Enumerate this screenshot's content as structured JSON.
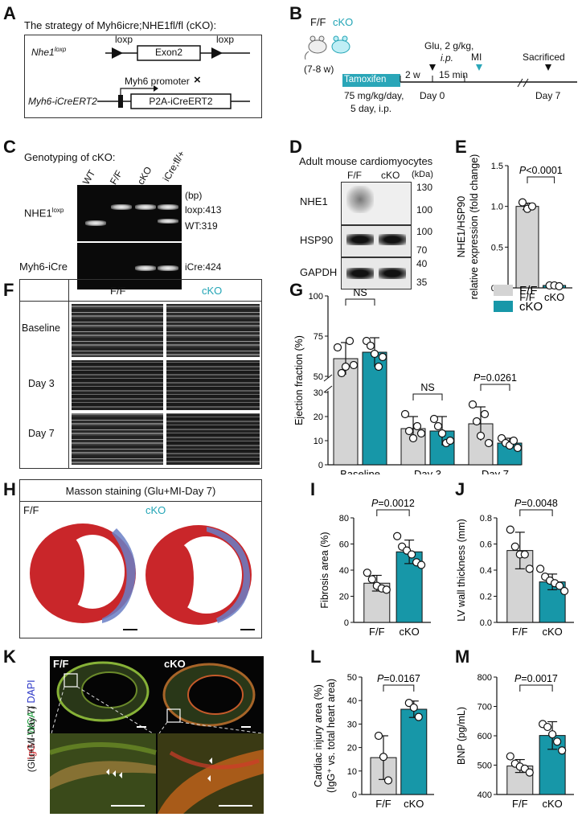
{
  "colors": {
    "ff": "#d4d4d4",
    "cko": "#1797a8",
    "cko_text": "#23a5b6",
    "tamoxifen": "#2aa6b8",
    "tissue_red": "#c9262a",
    "tissue_blue": "#6a7fc6"
  },
  "panelA": {
    "label": "A",
    "title": "The strategy of Myh6icre;NHE1fl/fl (cKO):",
    "nhe1": "Nhe1",
    "nhe1_sup": "loxp",
    "loxp_left": "loxp",
    "loxp_right": "loxp",
    "exon": "Exon2",
    "promoter": "Myh6 promoter",
    "promoter_mark": "×",
    "myh6": "Myh6-iCreERT2",
    "cassette": "P2A-iCreERT2"
  },
  "panelB": {
    "label": "B",
    "ff": "F/F",
    "cko": "cKO",
    "age": "(7-8 w)",
    "tamoxifen": "Tamoxifen",
    "dose1": "75 mg/kg/day,",
    "dose2": "5 day, i.p.",
    "two_w": "2 w",
    "glu": "Glu, 2 g/kg,",
    "glu_ip": "i.p.",
    "fifteen": "15 min",
    "mi": "MI",
    "sacrificed": "Sacrificed",
    "day0": "Day 0",
    "day7": "Day 7",
    "break": "//"
  },
  "panelC": {
    "label": "C",
    "title": "Genotyping of cKO:",
    "lanes": [
      "WT",
      "F/F",
      "cKO",
      "iCre;fl/+"
    ],
    "bp": "(bp)",
    "row1": "NHE1",
    "row1_sup": "loxp",
    "row2": "Myh6-iCre",
    "band1": "loxp:413",
    "band2": "WT:319",
    "band3": "iCre:424"
  },
  "panelD": {
    "label": "D",
    "title": "Adult mouse cardiomyocytes",
    "cols": [
      "F/F",
      "cKO"
    ],
    "kda": "(kDa)",
    "rows": [
      "NHE1",
      "HSP90",
      "GAPDH"
    ],
    "markers": [
      "130",
      "100",
      "100",
      "70",
      "40",
      "35"
    ]
  },
  "panelE": {
    "label": "E",
    "pval": "P<0.0001",
    "ylabel1": "NHE1/HSP90",
    "ylabel2": "relative expression (fold change)",
    "yticks": [
      "0.0",
      "0.5",
      "1.0",
      "1.5"
    ],
    "cats": [
      "F/F",
      "cKO"
    ]
  },
  "panelF": {
    "label": "F",
    "cols": [
      "F/F",
      "cKO"
    ],
    "rows": [
      "Baseline",
      "Day 3",
      "Day 7"
    ]
  },
  "panelG": {
    "label": "G",
    "ylabel": "Ejection fraction (%)",
    "yticks": [
      "0",
      "10",
      "20",
      "30",
      "50",
      "75",
      "100"
    ],
    "groups": [
      "Baseline",
      "Day 3",
      "Day 7"
    ],
    "ns1": "NS",
    "ns2": "NS",
    "pval": "P=0.0261",
    "legend": [
      "F/F",
      "cKO"
    ]
  },
  "panelH": {
    "label": "H",
    "title": "Masson staining (Glu+MI-Day 7)",
    "ff": "F/F",
    "cko": "cKO"
  },
  "panelI": {
    "label": "I",
    "pval": "P=0.0012",
    "ylabel": "Fibrosis area (%)",
    "yticks": [
      "0",
      "20",
      "40",
      "60",
      "80"
    ],
    "cats": [
      "F/F",
      "cKO"
    ]
  },
  "panelJ": {
    "label": "J",
    "pval": "P=0.0048",
    "ylabel": "LV wall thickness (mm)",
    "yticks": [
      "0.0",
      "0.2",
      "0.4",
      "0.6",
      "0.8"
    ],
    "cats": [
      "F/F",
      "cKO"
    ]
  },
  "panelK": {
    "label": "K",
    "ff": "F/F",
    "cko": "cKO",
    "stain_igg": "IgG",
    "stain_sep1": " / ",
    "stain_wga": "WGA",
    "stain_sep2": " / ",
    "stain_dapi": "DAPI",
    "sub": "(Glu+MI-Day 7)"
  },
  "panelL": {
    "label": "L",
    "pval": "P=0.0167",
    "ylabel1": "Cardiac injury area (%)",
    "ylabel2": "(IgG⁺ vs. total heart  area)",
    "yticks": [
      "0",
      "10",
      "20",
      "30",
      "40",
      "50"
    ],
    "cats": [
      "F/F",
      "cKO"
    ]
  },
  "panelM": {
    "label": "M",
    "pval": "P=0.0017",
    "ylabel": "BNP (pg/mL)",
    "yticks": [
      "400",
      "500",
      "600",
      "700",
      "800"
    ],
    "cats": [
      "F/F",
      "cKO"
    ]
  },
  "chart_data": [
    {
      "panel": "E",
      "type": "bar",
      "categories": [
        "F/F",
        "cKO"
      ],
      "values": [
        1.0,
        0.03
      ],
      "error": [
        0.04,
        0.01
      ],
      "points": [
        [
          1.05,
          0.97,
          1.0
        ],
        [
          0.03,
          0.03,
          0.02
        ]
      ],
      "ylim": [
        0,
        1.5
      ]
    },
    {
      "panel": "G",
      "type": "bar",
      "categories": [
        "Baseline",
        "Day 3",
        "Day 7"
      ],
      "ylim": [
        0,
        100
      ],
      "series": [
        {
          "name": "F/F",
          "values": [
            61,
            15,
            17
          ],
          "error": [
            10,
            5,
            7
          ],
          "points": [
            [
              68,
              52,
              56,
              72,
              57
            ],
            [
              21,
              14,
              11,
              16,
              13
            ],
            [
              25,
              18,
              12,
              21,
              9
            ]
          ]
        },
        {
          "name": "cKO",
          "values": [
            65,
            14,
            9
          ],
          "error": [
            9,
            6,
            2
          ],
          "points": [
            [
              72,
              69,
              64,
              56,
              62
            ],
            [
              19,
              16,
              13,
              9,
              10
            ],
            [
              11,
              9,
              8,
              10,
              7
            ]
          ]
        }
      ]
    },
    {
      "panel": "I",
      "type": "bar",
      "categories": [
        "F/F",
        "cKO"
      ],
      "values": [
        30,
        54
      ],
      "error": [
        6,
        9
      ],
      "points": [
        [
          38,
          33,
          28,
          26,
          25
        ],
        [
          66,
          58,
          55,
          52,
          46,
          44
        ]
      ],
      "ylim": [
        0,
        80
      ]
    },
    {
      "panel": "J",
      "type": "bar",
      "categories": [
        "F/F",
        "cKO"
      ],
      "values": [
        0.55,
        0.31
      ],
      "error": [
        0.14,
        0.06
      ],
      "points": [
        [
          0.71,
          0.58,
          0.52,
          0.52,
          0.41
        ],
        [
          0.41,
          0.35,
          0.32,
          0.3,
          0.28,
          0.24
        ]
      ],
      "ylim": [
        0,
        0.8
      ]
    },
    {
      "panel": "L",
      "type": "bar",
      "categories": [
        "F/F",
        "cKO"
      ],
      "values": [
        15.7,
        36.3
      ],
      "error": [
        9.3,
        3.5
      ],
      "points": [
        [
          25,
          16,
          6
        ],
        [
          39,
          37,
          33
        ]
      ],
      "ylim": [
        0,
        50
      ]
    },
    {
      "panel": "M",
      "type": "bar",
      "categories": [
        "F/F",
        "cKO"
      ],
      "values": [
        497,
        601
      ],
      "error": [
        22,
        47
      ],
      "points": [
        [
          530,
          505,
          495,
          488,
          475
        ],
        [
          640,
          630,
          605,
          580,
          550
        ]
      ],
      "ylim": [
        400,
        800
      ]
    }
  ]
}
